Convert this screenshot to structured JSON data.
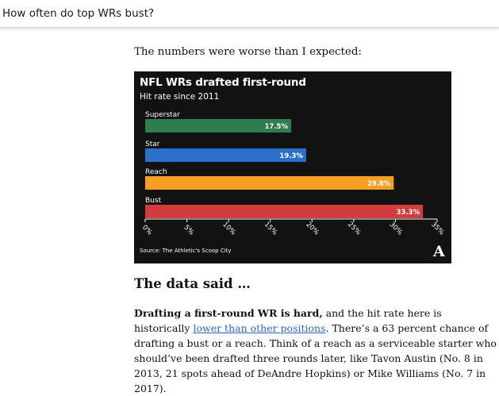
{
  "header": {
    "title": "How often do top WRs bust?"
  },
  "article": {
    "intro": "The numbers were worse than I expected:",
    "heading": "The data said …",
    "paragraph": {
      "line1_bold": "Drafting a first-round WR is hard,",
      "line1_rest": " and the hit rate here is",
      "line2_pre": "historically ",
      "line2_link": "lower than other positions",
      "line2_post": ". There’s a 63 percent chance of",
      "line3": "drafting a bust or a reach. Think of a reach as a serviceable starter who",
      "line4": "should’ve been drafted three rounds later, like Tavon Austin (No. 8 in",
      "line5": "2013, 21 spots ahead of DeAndre Hopkins) or Mike Williams (No. 7 in",
      "line6": "2017)."
    }
  },
  "chart_data": {
    "type": "bar",
    "orientation": "horizontal",
    "title": "NFL WRs drafted first-round",
    "subtitle": "Hit rate since 2011",
    "source": "Source: The Athletic's Scoop City",
    "logo": "A",
    "categories": [
      "Superstar",
      "Star",
      "Reach",
      "Bust"
    ],
    "values": [
      17.5,
      19.3,
      29.8,
      33.3
    ],
    "data_labels": [
      "17.5%",
      "19.3%",
      "29.8%",
      "33.3%"
    ],
    "colors": [
      "#2e7d4f",
      "#2a6fc9",
      "#f5a023",
      "#d23c3c"
    ],
    "xlim": [
      0,
      35
    ],
    "ticks": [
      0,
      5,
      10,
      15,
      20,
      25,
      30,
      35
    ],
    "tick_labels": [
      "0%",
      "5%",
      "10%",
      "15%",
      "20%",
      "25%",
      "30%",
      "35%"
    ],
    "grid": false,
    "background": "#121212"
  }
}
